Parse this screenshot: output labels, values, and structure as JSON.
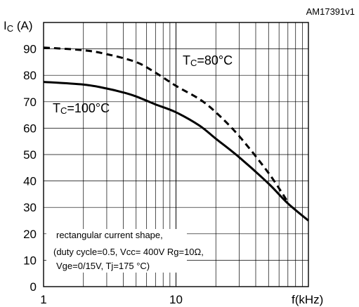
{
  "chart_data": {
    "type": "line",
    "reference_code": "AM17391v1",
    "ylabel": {
      "main": "I",
      "sub": "C",
      "unit": " (A)"
    },
    "xlabel": "f(kHz)",
    "x_scale": "log",
    "xlim": [
      1,
      100
    ],
    "ylim": [
      0,
      100
    ],
    "x_ticks": [
      {
        "value": 1,
        "label": "1"
      },
      {
        "value": 10,
        "label": "10"
      }
    ],
    "y_ticks": [
      0,
      10,
      20,
      30,
      40,
      50,
      60,
      70,
      80,
      90
    ],
    "y_tick_labels": [
      "0",
      "10",
      "20",
      "30",
      "40",
      "50",
      "60",
      "70",
      "80",
      "90"
    ],
    "grid": true,
    "series": [
      {
        "name": "TC=80°C",
        "label": {
          "main": "T",
          "sub": "C",
          "rest": "=80°C"
        },
        "style": "dashed",
        "color": "#000000",
        "x": [
          1,
          2,
          3,
          5,
          7,
          10,
          15,
          20,
          30,
          50,
          70
        ],
        "y": [
          90.5,
          89.5,
          88,
          85,
          81,
          76,
          71,
          66,
          57,
          43,
          32
        ]
      },
      {
        "name": "TC=100°C",
        "label": {
          "main": "T",
          "sub": "C",
          "rest": "=100°C"
        },
        "style": "solid",
        "color": "#000000",
        "x": [
          1,
          2,
          3,
          4,
          5,
          7,
          10,
          15,
          20,
          30,
          50,
          70,
          100
        ],
        "y": [
          77.5,
          76.5,
          75,
          73.5,
          72,
          69,
          66,
          61,
          56,
          49,
          39,
          31.5,
          25
        ]
      }
    ],
    "annotation": [
      "rectangular current shape,",
      "(duty cycle=0.5, Vcc= 400V Rg=10Ω,",
      "Vge=0/15V, Tj=175 °C)"
    ]
  }
}
